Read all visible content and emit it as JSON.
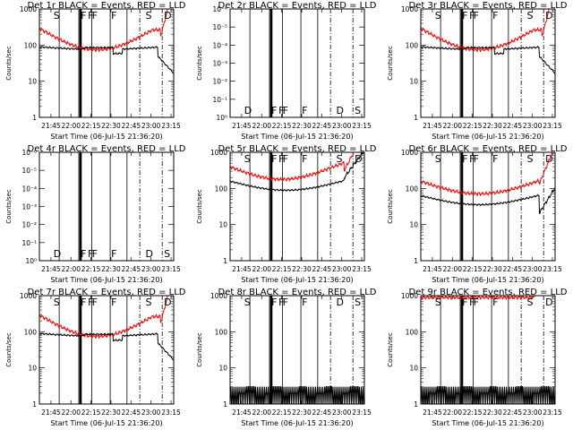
{
  "chart_data": [
    {
      "type": "line",
      "title": "Det 1r BLACK = Events, RED = LLD",
      "ylabel": "Counts/sec",
      "xlabel": "Start Time (06-Jul-15 21:36:20)",
      "xticks": [
        "21:45",
        "22:00",
        "22:15",
        "22:30",
        "22:45",
        "23:00",
        "23:15"
      ],
      "yscale": "log",
      "ylim": [
        1,
        1000
      ],
      "yticks": [
        "1",
        "10",
        "100",
        "1000"
      ],
      "flags": [
        "S",
        "F",
        "F",
        "F",
        "F",
        "S",
        "D"
      ],
      "series": [
        {
          "name": "RED = LLD",
          "color": "#ff0000",
          "profile": "high"
        },
        {
          "name": "BLACK = Events",
          "color": "#000000",
          "profile": "events"
        }
      ]
    },
    {
      "type": "line",
      "title": "Det 2r BLACK = Events, RED = LLD",
      "ylabel": "Counts/sec",
      "xlabel": "Start Time (06-Jul-15 21:36:20)",
      "xticks": [
        "21:45",
        "22:00",
        "22:15",
        "22:30",
        "22:45",
        "23:00",
        "23:15"
      ],
      "yscale": "log",
      "ylim": [
        1,
        1e-06
      ],
      "yticks": [
        "10⁰",
        "10⁻¹",
        "10⁻²",
        "10⁻³",
        "10⁻⁴",
        "10⁻⁵",
        "10⁻⁶"
      ],
      "flags": [
        "D",
        "F",
        "F",
        "F",
        "F",
        "D",
        "S"
      ],
      "series": []
    },
    {
      "type": "line",
      "title": "Det 3r BLACK = Events, RED = LLD",
      "ylabel": "Counts/sec",
      "xlabel": "Start Time (06-Jul-15 21:36:20)",
      "xticks": [
        "21:45",
        "22:00",
        "22:15",
        "22:30",
        "22:45",
        "23:00",
        "23:15"
      ],
      "yscale": "log",
      "ylim": [
        1,
        1000
      ],
      "yticks": [
        "1",
        "10",
        "100",
        "1000"
      ],
      "flags": [
        "S",
        "F",
        "F",
        "F",
        "F",
        "S",
        "D"
      ],
      "series": [
        {
          "name": "RED = LLD",
          "color": "#ff0000",
          "profile": "high"
        },
        {
          "name": "BLACK = Events",
          "color": "#000000",
          "profile": "events"
        }
      ]
    },
    {
      "type": "line",
      "title": "Det 4r BLACK = Events, RED = LLD",
      "ylabel": "Counts/sec",
      "xlabel": "Start Time (06-Jul-15 21:36:20)",
      "xticks": [
        "21:45",
        "22:00",
        "22:15",
        "22:30",
        "22:45",
        "23:00",
        "23:15"
      ],
      "yscale": "log",
      "ylim": [
        1,
        1e-06
      ],
      "yticks": [
        "10⁰",
        "10⁻¹",
        "10⁻²",
        "10⁻³",
        "10⁻⁴",
        "10⁻⁵",
        "10⁻⁶"
      ],
      "flags": [
        "D",
        "F",
        "F",
        "F",
        "F",
        "D",
        "S"
      ],
      "series": []
    },
    {
      "type": "line",
      "title": "Det 5r BLACK = Events, RED = LLD",
      "ylabel": "Counts/sec",
      "xlabel": "Start Time (06-Jul-15 21:36:20)",
      "xticks": [
        "21:45",
        "22:00",
        "22:15",
        "22:30",
        "22:45",
        "23:00",
        "23:15"
      ],
      "yscale": "log",
      "ylim": [
        1,
        1000
      ],
      "yticks": [
        "1",
        "10",
        "100",
        "1000"
      ],
      "flags": [
        "S",
        "F",
        "F",
        "F",
        "F",
        "S",
        "D"
      ],
      "series": [
        {
          "name": "RED = LLD",
          "color": "#ff0000",
          "profile": "det5red"
        },
        {
          "name": "BLACK = Events",
          "color": "#000000",
          "profile": "det5black"
        }
      ]
    },
    {
      "type": "line",
      "title": "Det 6r BLACK = Events, RED = LLD",
      "ylabel": "Counts/sec",
      "xlabel": "Start Time (06-Jul-15 21:36:20)",
      "xticks": [
        "21:45",
        "22:00",
        "22:15",
        "22:30",
        "22:45",
        "23:00",
        "23:15"
      ],
      "yscale": "log",
      "ylim": [
        1,
        1000
      ],
      "yticks": [
        "1",
        "10",
        "100",
        "1000"
      ],
      "flags": [
        "S",
        "F",
        "F",
        "F",
        "F",
        "S",
        "D"
      ],
      "series": [
        {
          "name": "RED = LLD",
          "color": "#ff0000",
          "profile": "det6red"
        },
        {
          "name": "BLACK = Events",
          "color": "#000000",
          "profile": "det6black"
        }
      ]
    },
    {
      "type": "line",
      "title": "Det 7r BLACK = Events, RED = LLD",
      "ylabel": "Counts/sec",
      "xlabel": "Start Time (06-Jul-15 21:36:20)",
      "xticks": [
        "21:45",
        "22:00",
        "22:15",
        "22:30",
        "22:45",
        "23:00",
        "23:15"
      ],
      "yscale": "log",
      "ylim": [
        1,
        1000
      ],
      "yticks": [
        "1",
        "10",
        "100",
        "1000"
      ],
      "flags": [
        "S",
        "F",
        "F",
        "F",
        "F",
        "S",
        "D"
      ],
      "series": [
        {
          "name": "RED = LLD",
          "color": "#ff0000",
          "profile": "high"
        },
        {
          "name": "BLACK = Events",
          "color": "#000000",
          "profile": "events"
        }
      ]
    },
    {
      "type": "line",
      "title": "Det 8r BLACK = Events, RED = LLD",
      "ylabel": "Counts/sec",
      "xlabel": "Start Time (06-Jul-15 21:36:20)",
      "xticks": [
        "21:45",
        "22:00",
        "22:15",
        "22:30",
        "22:45",
        "23:00",
        "23:15"
      ],
      "yscale": "log",
      "ylim": [
        1,
        1000
      ],
      "yticks": [
        "1",
        "10",
        "100",
        "1000"
      ],
      "flags": [
        "S",
        "F",
        "F",
        "F",
        "F",
        "D",
        "S"
      ],
      "series": [
        {
          "name": "BLACK = Events",
          "color": "#000000",
          "profile": "low"
        }
      ]
    },
    {
      "type": "line",
      "title": "Det 9r BLACK = Events, RED = LLD",
      "ylabel": "Counts/sec",
      "xlabel": "Start Time (06-Jul-15 21:36:20)",
      "xticks": [
        "21:45",
        "22:00",
        "22:15",
        "22:30",
        "22:45",
        "23:00",
        "23:15"
      ],
      "yscale": "log",
      "ylim": [
        1,
        1000
      ],
      "yticks": [
        "1",
        "10",
        "100",
        "1000"
      ],
      "flags": [
        "S",
        "F",
        "F",
        "F",
        "F",
        "S",
        "D"
      ],
      "series": [
        {
          "name": "RED = LLD",
          "color": "#ff0000",
          "profile": "top"
        },
        {
          "name": "BLACK = Events",
          "color": "#000000",
          "profile": "low"
        }
      ]
    }
  ]
}
